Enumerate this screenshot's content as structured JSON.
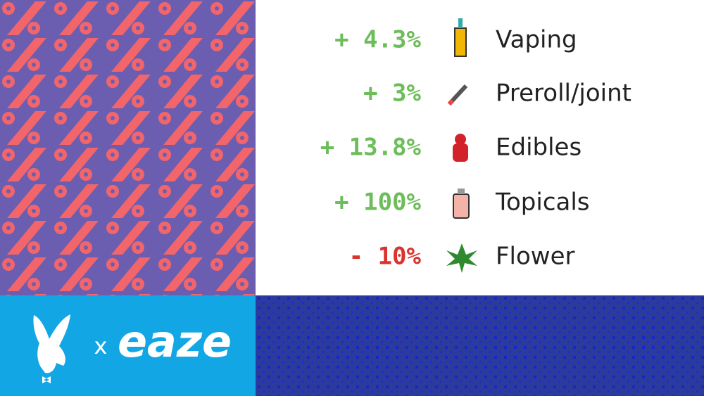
{
  "rows": [
    {
      "change": "+ 4.3%",
      "label": "Vaping",
      "color": "#6dbd5b"
    },
    {
      "change": "+ 3%",
      "label": "Preroll/joint",
      "color": "#6dbd5b"
    },
    {
      "change": "+ 13.8%",
      "label": "Edibles",
      "color": "#6dbd5b"
    },
    {
      "change": "+ 100%",
      "label": "Topicals",
      "color": "#6dbd5b"
    },
    {
      "change": "- 10%",
      "label": "Flower",
      "color": "#d9352e"
    }
  ],
  "logo": {
    "separator": "x",
    "brand": "eaze"
  }
}
